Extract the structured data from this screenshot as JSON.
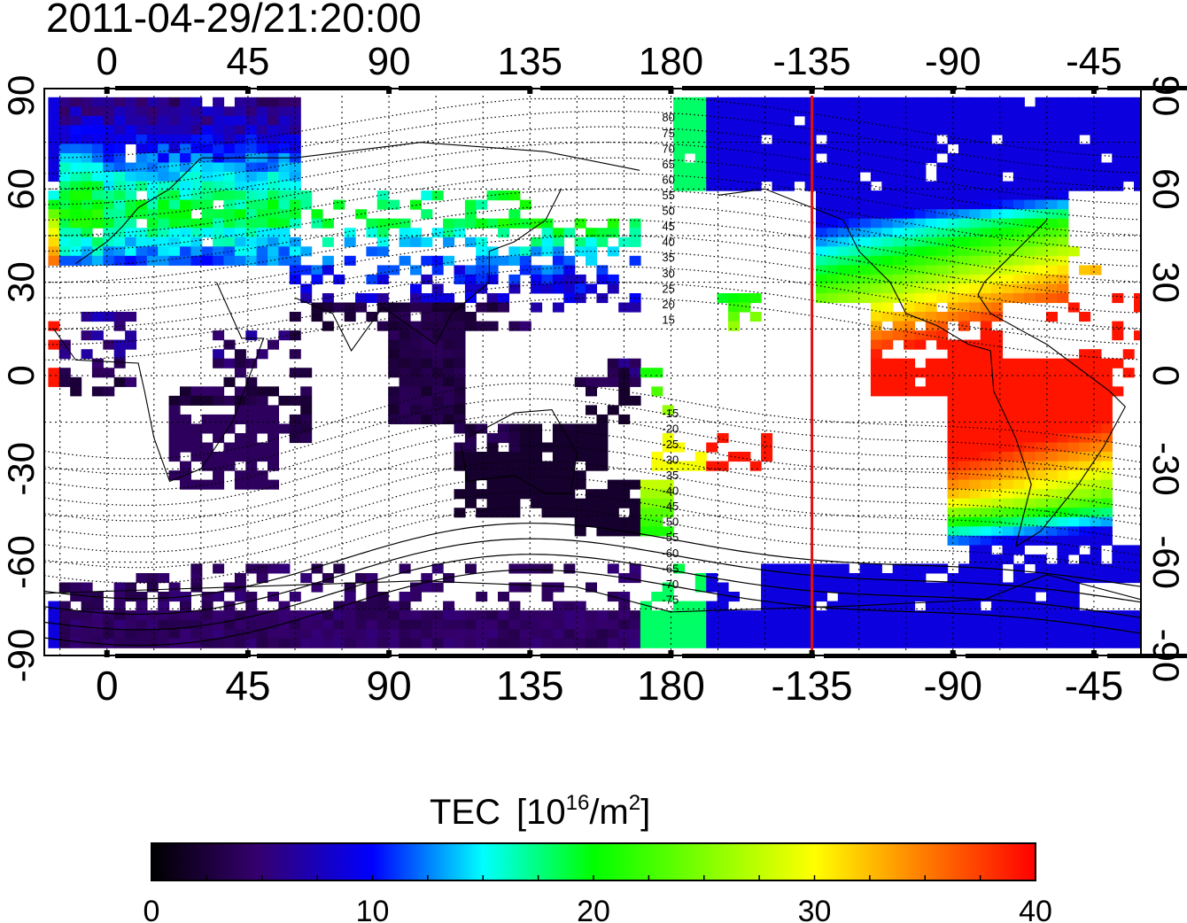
{
  "title": "2011-04-29/21:20:00",
  "axes": {
    "lon_ticks": [
      "0",
      "45",
      "90",
      "135",
      "180",
      "-135",
      "-90",
      "-45"
    ],
    "lat_ticks": [
      "90",
      "60",
      "30",
      "0",
      "-30",
      "-60",
      "-90"
    ]
  },
  "map": {
    "lon_range": [
      -20,
      330
    ],
    "lat_range": [
      -90,
      90
    ],
    "grid": "dotted, 15 degree spacing",
    "coastlines": true,
    "magnetic_latitude_contours": [
      "80",
      "75",
      "70",
      "65",
      "60",
      "55",
      "50",
      "45",
      "40",
      "35",
      "30",
      "25",
      "20",
      "15",
      "-15",
      "-20",
      "-25",
      "-30",
      "-35",
      "-40",
      "-45",
      "-50",
      "-55",
      "-60",
      "-65",
      "-70",
      "-75"
    ],
    "marker_longitude": "-135",
    "marker_color": "#e01010"
  },
  "colorbar": {
    "title": "TEC",
    "unit_base": "[10",
    "unit_exp": "16",
    "unit_mid": "/m",
    "unit_exp2": "2",
    "unit_end": "]",
    "ticks": [
      "0",
      "10",
      "20",
      "30",
      "40"
    ],
    "range": [
      0,
      40
    ],
    "colormap": [
      "#000000",
      "#3a0070",
      "#0000ff",
      "#00ffff",
      "#00ff00",
      "#ffff00",
      "#ff8000",
      "#ff0000"
    ]
  }
}
